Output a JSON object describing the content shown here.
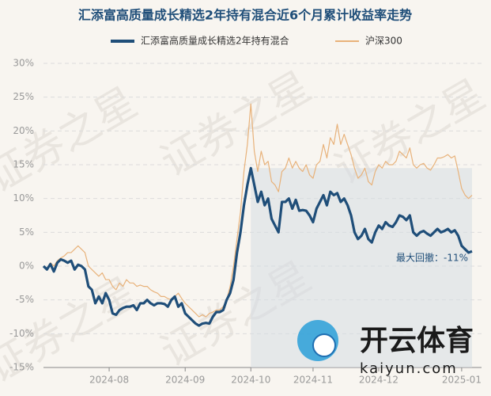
{
  "chart_data": {
    "type": "line",
    "title": "汇添富高质量成长精选2年持有混合近6个月累计收益率走势",
    "categories": [
      null,
      null,
      null,
      null,
      null,
      null,
      null,
      null,
      null,
      null,
      null,
      null,
      null,
      null,
      null,
      null,
      null,
      null,
      null,
      "2024-08",
      null,
      null,
      null,
      null,
      null,
      null,
      null,
      null,
      null,
      null,
      null,
      null,
      null,
      null,
      null,
      null,
      null,
      null,
      null,
      null,
      null,
      "2024-09",
      null,
      null,
      null,
      null,
      null,
      null,
      null,
      null,
      null,
      null,
      null,
      null,
      null,
      null,
      null,
      null,
      null,
      null,
      "2024-10",
      null,
      null,
      null,
      null,
      null,
      null,
      null,
      null,
      null,
      null,
      null,
      null,
      null,
      null,
      null,
      null,
      null,
      "2024-11",
      null,
      null,
      null,
      null,
      null,
      null,
      null,
      null,
      null,
      null,
      null,
      null,
      null,
      null,
      null,
      null,
      null,
      null,
      "2024-12",
      null,
      null,
      null,
      null,
      null,
      null,
      null,
      null,
      null,
      null,
      null,
      null,
      null,
      null,
      null,
      null,
      null,
      null,
      null,
      null,
      null,
      null,
      null,
      "2025-01",
      null,
      null,
      null
    ],
    "series": [
      {
        "name": "汇添富高质量成长精选2年持有混合",
        "color": "#1f4e79",
        "width": 3.2,
        "values": [
          0,
          -0.5,
          0.3,
          -0.8,
          0.5,
          1.0,
          0.8,
          0.5,
          0.8,
          -0.5,
          0.2,
          0,
          -0.5,
          -3,
          -3.5,
          -5.5,
          -4.5,
          -5.5,
          -4,
          -5,
          -7,
          -7.2,
          -6.5,
          -6.2,
          -6,
          -6,
          -5.8,
          -6.5,
          -5.5,
          -5.5,
          -5,
          -5.5,
          -5.8,
          -5.5,
          -5.5,
          -5.6,
          -6,
          -5,
          -4.5,
          -6,
          -5.5,
          -7,
          -7.5,
          -8,
          -8.5,
          -8.8,
          -8.5,
          -8.4,
          -8.5,
          -7.5,
          -6.8,
          -6.8,
          -6.5,
          -5,
          -4,
          -2,
          2,
          5,
          9,
          12,
          14.5,
          12,
          9.5,
          11,
          9,
          10,
          7,
          6,
          5,
          9.5,
          9.5,
          10,
          8.5,
          9.8,
          8.2,
          8.3,
          8.2,
          7.5,
          6.5,
          8.5,
          9.5,
          10.5,
          9,
          11,
          10.5,
          10.8,
          9.5,
          10,
          9,
          7.5,
          5,
          4,
          4.5,
          5.5,
          4,
          3.5,
          5,
          6,
          5.5,
          6.5,
          6,
          5.8,
          6.5,
          7.5,
          7.3,
          6.8,
          7.5,
          5,
          4.5,
          5,
          5.2,
          4.8,
          4.5,
          5,
          5.5,
          5,
          5.2,
          5.5,
          5,
          5.3,
          4.5,
          3,
          2.5,
          2,
          2.2
        ]
      },
      {
        "name": "沪深300",
        "color": "#e8b27a",
        "width": 1.2,
        "values": [
          0,
          -0.3,
          0.5,
          0,
          0.8,
          1.2,
          1.5,
          2,
          2,
          2.5,
          3,
          2.5,
          2,
          0,
          -0.5,
          -1,
          -1.5,
          -1,
          -2,
          -2,
          -3,
          -3.5,
          -2.5,
          -3,
          -2,
          -2.5,
          -2.5,
          -3,
          -2.8,
          -3,
          -3,
          -3.5,
          -3.8,
          -4,
          -4.5,
          -4.5,
          -4.8,
          -5,
          -4.5,
          -4,
          -4.8,
          -5.5,
          -6,
          -6.5,
          -7,
          -7.5,
          -7.2,
          -7.5,
          -7,
          -6.8,
          -6.5,
          -6.5,
          -6,
          -5,
          -3,
          0,
          4,
          8,
          14,
          18,
          24,
          17,
          14,
          17,
          15,
          15.5,
          12.5,
          12,
          11,
          14,
          14.5,
          16,
          14.5,
          15.5,
          14.5,
          14,
          15,
          13.5,
          13,
          15,
          15.5,
          18,
          16,
          19,
          18,
          21,
          18,
          19.5,
          18,
          16.5,
          14.5,
          13,
          13.5,
          14.5,
          12.5,
          12,
          14,
          15,
          14.5,
          15.5,
          15,
          15,
          15.5,
          17,
          16.5,
          16,
          17.5,
          15,
          14.5,
          15,
          15.2,
          14.5,
          14.2,
          15,
          16,
          16,
          16.2,
          16.5,
          16,
          16.3,
          14,
          11.5,
          10.5,
          10,
          10.5
        ]
      }
    ],
    "ylim": [
      -15,
      30
    ],
    "yticks": [
      {
        "value": -15,
        "label": "-15%"
      },
      {
        "value": -10,
        "label": "-10%"
      },
      {
        "value": -5,
        "label": "-5%"
      },
      {
        "value": 0,
        "label": "0%"
      },
      {
        "value": 5,
        "label": "5%"
      },
      {
        "value": 10,
        "label": "10%"
      },
      {
        "value": 15,
        "label": "15%"
      },
      {
        "value": 20,
        "label": "20%"
      },
      {
        "value": 25,
        "label": "25%"
      },
      {
        "value": 30,
        "label": "30%"
      }
    ],
    "grid": true,
    "legend": "top",
    "annotation": "最大回撤：-11%",
    "watermark": "证券之星",
    "logo_text": "开云体育",
    "logo_url": "kaiyun.com"
  }
}
